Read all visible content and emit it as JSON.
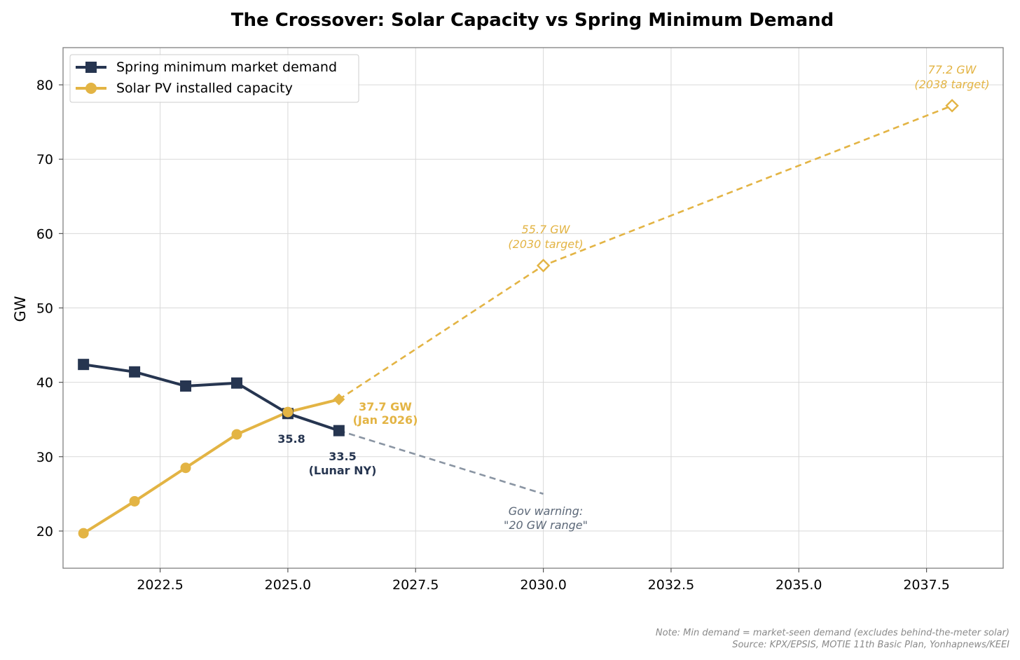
{
  "chart_data": {
    "type": "line",
    "title": "The Crossover: Solar Capacity vs Spring Minimum Demand",
    "xlabel": "",
    "ylabel": "GW",
    "xlim": [
      2020.6,
      2039.0
    ],
    "ylim": [
      15,
      85
    ],
    "x_ticks": [
      2022.5,
      2025.0,
      2027.5,
      2030.0,
      2032.5,
      2035.0,
      2037.5
    ],
    "x_tick_labels": [
      "2022.5",
      "2025.0",
      "2027.5",
      "2030.0",
      "2032.5",
      "2035.0",
      "2037.5"
    ],
    "y_ticks": [
      20,
      30,
      40,
      50,
      60,
      70,
      80
    ],
    "y_tick_labels": [
      "20",
      "30",
      "40",
      "50",
      "60",
      "70",
      "80"
    ],
    "grid": true,
    "legend_position": "top-left",
    "series": [
      {
        "name": "Spring minimum market demand",
        "color": "#263550",
        "marker": "square",
        "x": [
          2021,
          2022,
          2023,
          2024,
          2025,
          2026
        ],
        "y": [
          42.4,
          41.4,
          39.5,
          39.9,
          35.8,
          33.5
        ]
      },
      {
        "name": "Solar PV installed capacity",
        "color": "#e3b444",
        "marker": "circle",
        "x": [
          2021,
          2022,
          2023,
          2024,
          2025
        ],
        "y": [
          19.7,
          24.0,
          28.5,
          33.0,
          36.0
        ]
      }
    ],
    "extras": {
      "solar_current": {
        "x": 2026,
        "y": 37.7,
        "marker": "diamond"
      },
      "solar_projection": {
        "x": [
          2026,
          2030,
          2038
        ],
        "y": [
          37.7,
          55.7,
          77.2
        ],
        "style": "dashed",
        "marker": "open-diamond"
      },
      "demand_projection": {
        "x": [
          2026,
          2030
        ],
        "y": [
          33.5,
          25.0
        ],
        "style": "dashed",
        "color": "#8a95a3"
      }
    },
    "annotations": [
      {
        "lines": [
          "37.7 GW",
          "(Jan 2026)"
        ],
        "color": "#e3b444",
        "bold": true
      },
      {
        "lines": [
          "35.8"
        ],
        "color": "#263550",
        "bold": true
      },
      {
        "lines": [
          "33.5",
          "(Lunar NY)"
        ],
        "color": "#263550",
        "bold": true
      },
      {
        "lines": [
          "55.7 GW",
          "(2030 target)"
        ],
        "color": "#e3b444",
        "italic": true
      },
      {
        "lines": [
          "77.2 GW",
          "(2038 target)"
        ],
        "color": "#e3b444",
        "italic": true
      },
      {
        "lines": [
          "Gov warning:",
          "\"20 GW range\""
        ],
        "color": "#5c6878",
        "italic": true
      }
    ]
  },
  "footer": {
    "note": "Note: Min demand = market-seen demand (excludes behind-the-meter solar)",
    "source": "Source: KPX/EPSIS, MOTIE 11th Basic Plan, Yonhapnews/KEEI"
  }
}
